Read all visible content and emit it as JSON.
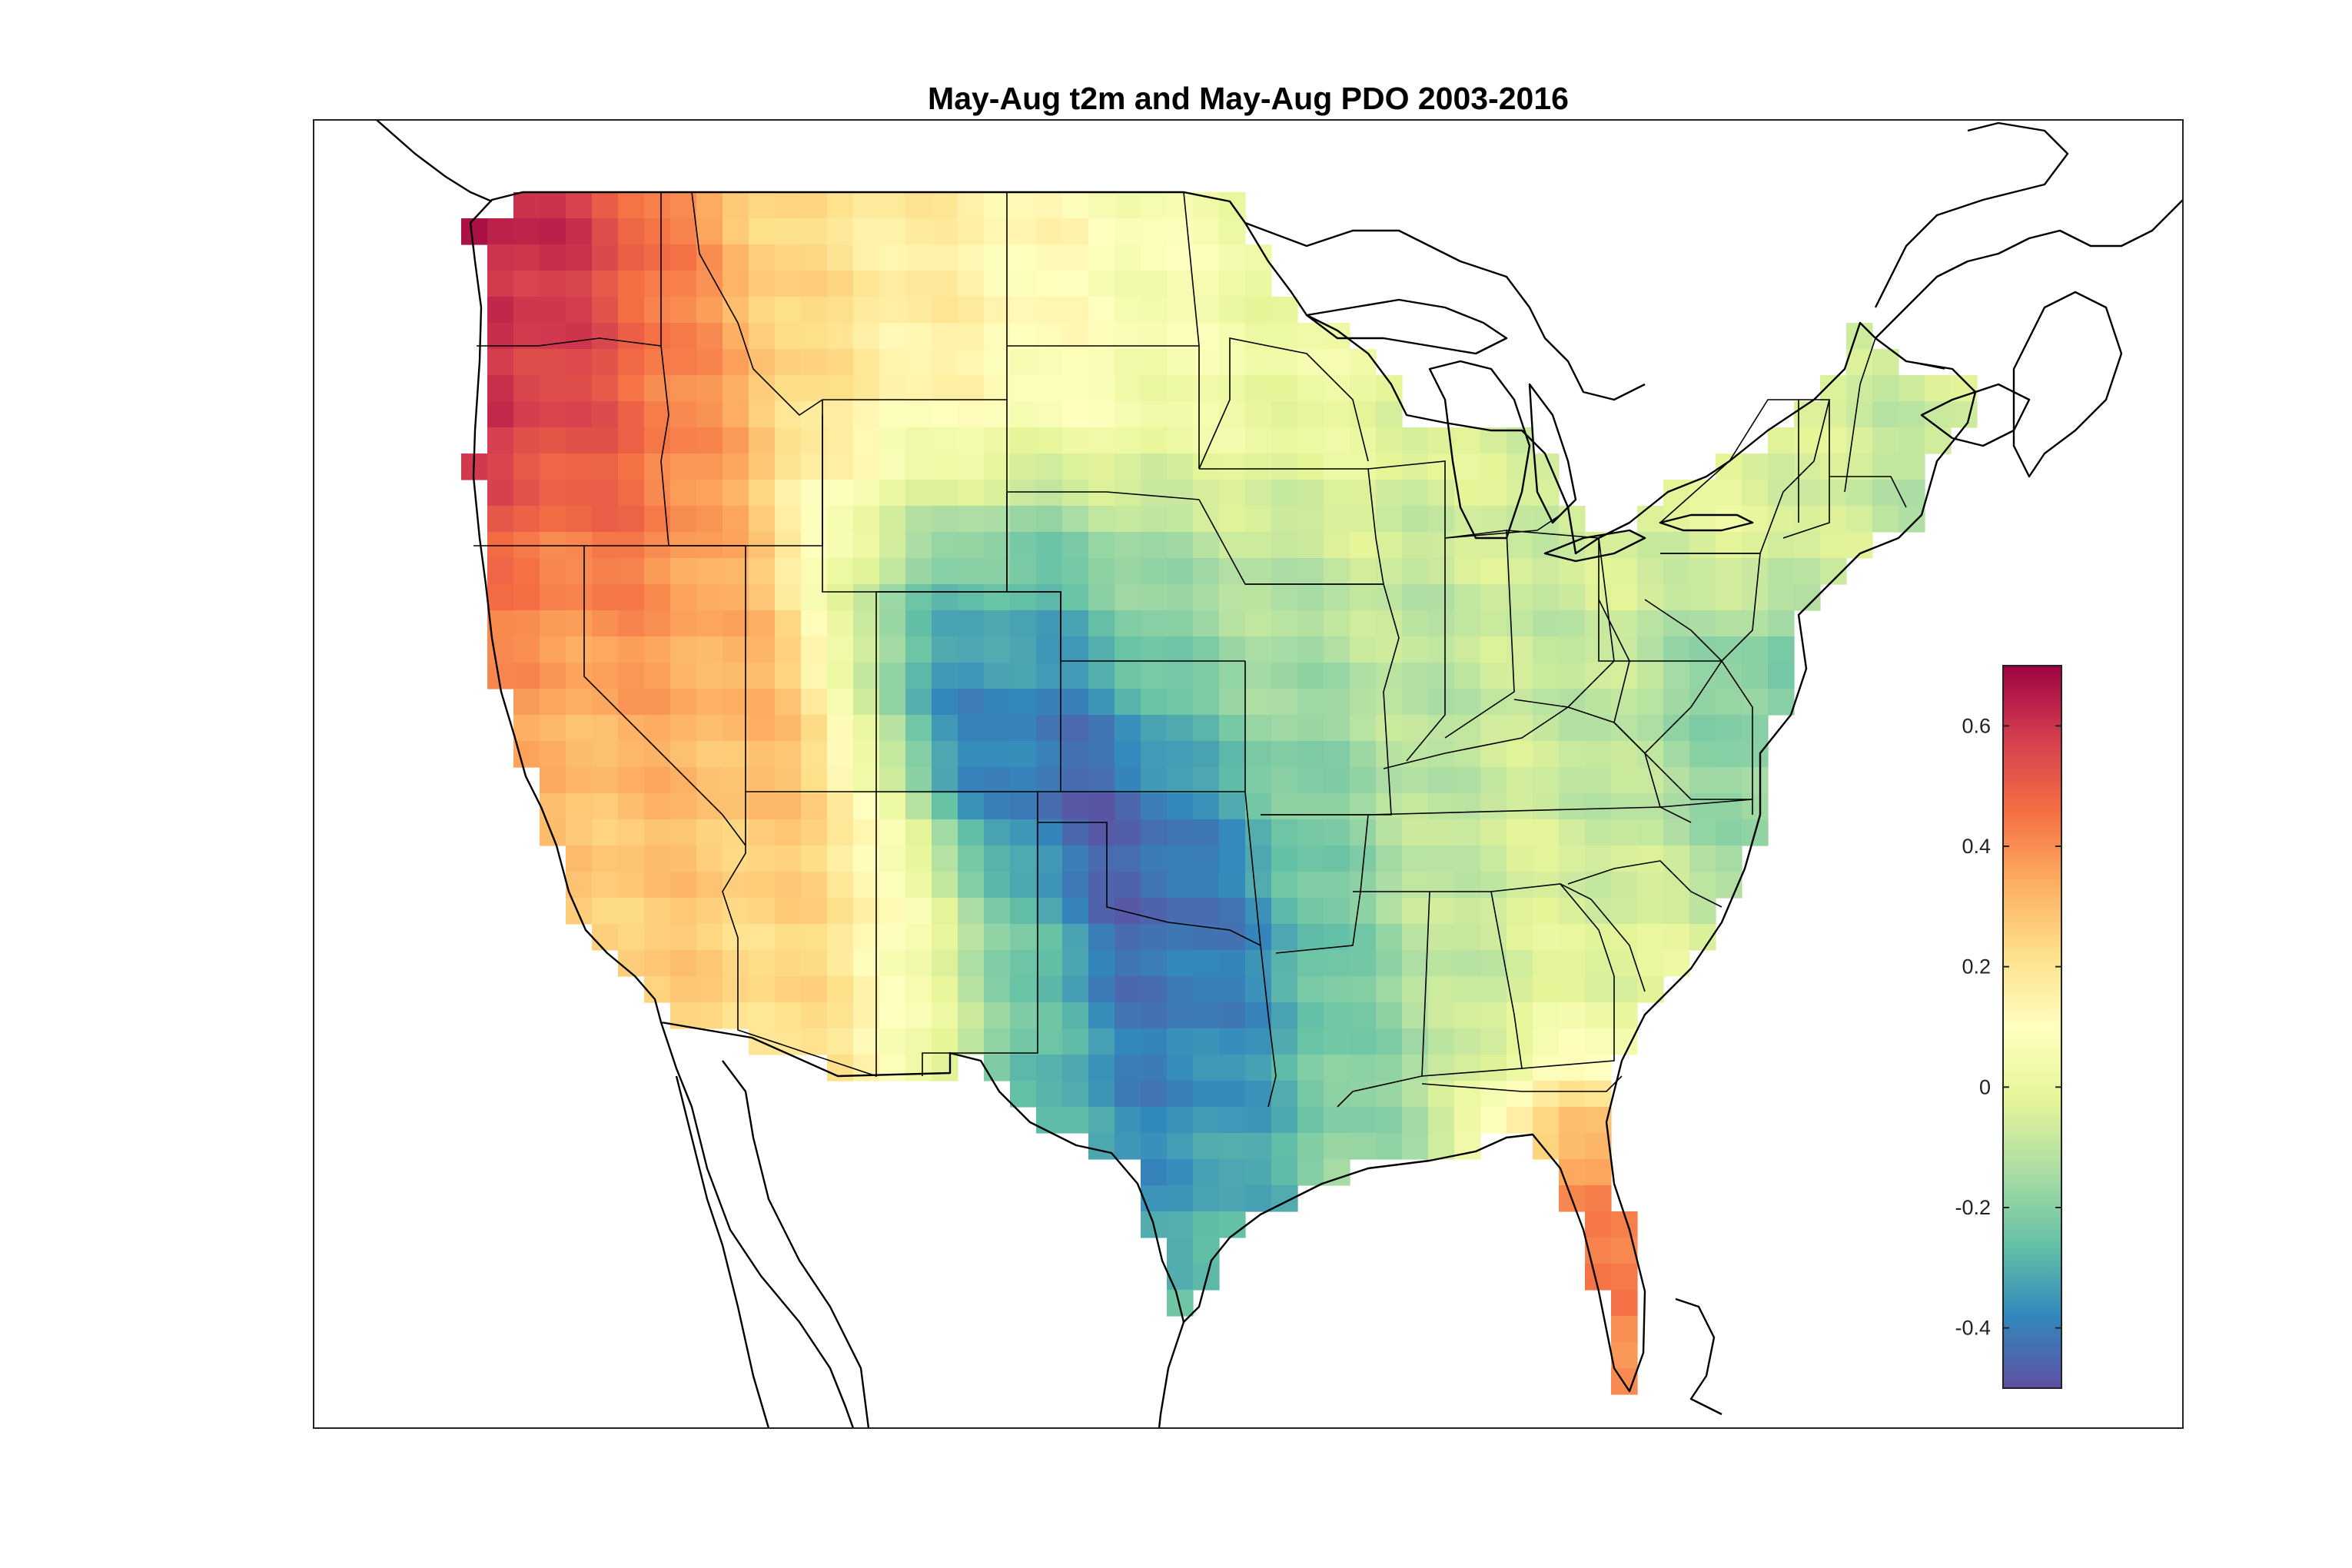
{
  "title": "May-Aug t2m and May-Aug PDO 2003-2016",
  "colorbar": {
    "min": -0.5,
    "max": 0.7,
    "ticks": [
      {
        "value": 0.6,
        "label": "0.6"
      },
      {
        "value": 0.4,
        "label": "0.4"
      },
      {
        "value": 0.2,
        "label": "0.2"
      },
      {
        "value": 0,
        "label": "0"
      },
      {
        "value": -0.2,
        "label": "-0.2"
      },
      {
        "value": -0.4,
        "label": "-0.4"
      }
    ],
    "colors": [
      "#5e4fa2",
      "#3288bd",
      "#66c2a5",
      "#abdda4",
      "#e6f598",
      "#ffffbf",
      "#fee08b",
      "#fdae61",
      "#f46d43",
      "#d53e4f",
      "#9e0142"
    ]
  },
  "chart_data": {
    "type": "heatmap",
    "title": "May-Aug t2m and May-Aug PDO 2003-2016",
    "region": "contiguous United States",
    "variable": "correlation of May-Aug t2m with May-Aug PDO",
    "period": "2003-2016",
    "color_scale": "Spectral",
    "clim": [
      -0.5,
      0.7
    ],
    "regional_values": [
      {
        "region": "Pacific Northwest coast",
        "value": 0.65
      },
      {
        "region": "Washington / Oregon interior",
        "value": 0.55
      },
      {
        "region": "California coast",
        "value": 0.35
      },
      {
        "region": "Nevada / Utah",
        "value": 0.3
      },
      {
        "region": "Northern Rockies / Montana",
        "value": 0.25
      },
      {
        "region": "Southern Arizona / New Mexico",
        "value": 0.22
      },
      {
        "region": "Northern Plains / Dakotas",
        "value": 0.1
      },
      {
        "region": "Upper Midwest / Great Lakes",
        "value": -0.05
      },
      {
        "region": "Colorado Front Range",
        "value": -0.35
      },
      {
        "region": "Southern Plains / Texas / Oklahoma",
        "value": -0.45
      },
      {
        "region": "Lower Mississippi Valley",
        "value": -0.25
      },
      {
        "region": "Southeast",
        "value": -0.05
      },
      {
        "region": "Mid-Atlantic coast",
        "value": -0.25
      },
      {
        "region": "Northeast / New England",
        "value": 0.0
      },
      {
        "region": "Florida peninsula",
        "value": 0.4
      },
      {
        "region": "South Texas tip",
        "value": -0.25
      }
    ]
  }
}
